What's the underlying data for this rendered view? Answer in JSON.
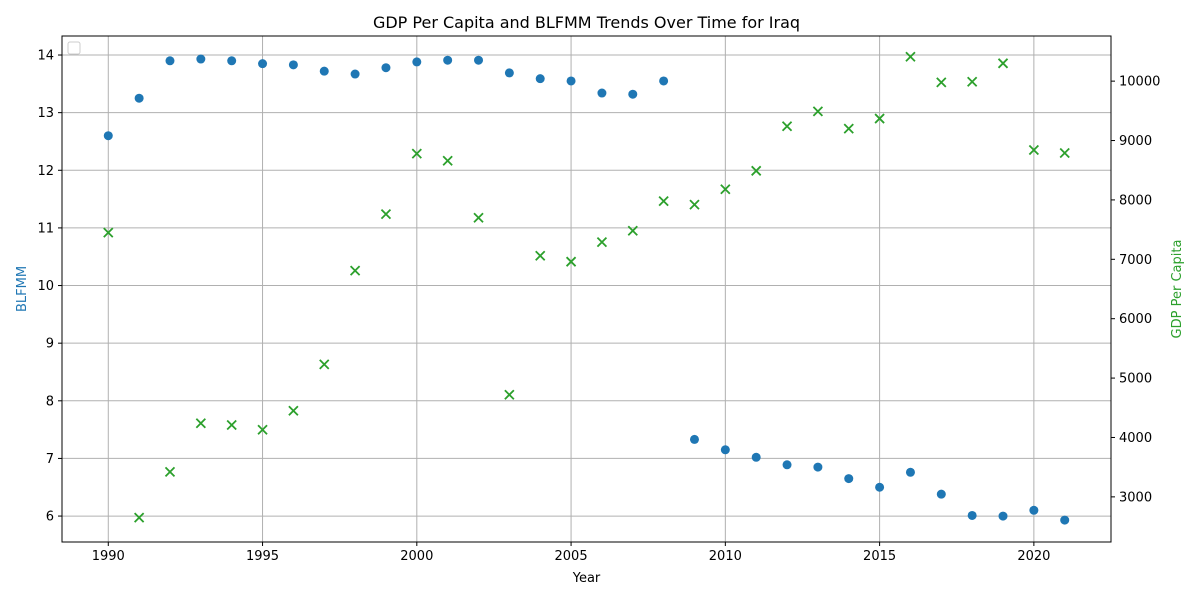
{
  "chart_data": {
    "type": "scatter",
    "title": "GDP Per Capita and BLFMM Trends Over Time for Iraq",
    "xlabel": "Year",
    "ylabel_left": "BLFMM",
    "ylabel_right": "GDP Per Capita",
    "xlim": [
      1988.5,
      2022.5
    ],
    "ylim_left": [
      5.55,
      14.33
    ],
    "ylim_right": [
      2240,
      10760
    ],
    "x_ticks": [
      1990,
      1995,
      2000,
      2005,
      2010,
      2015,
      2020
    ],
    "y_ticks_left": [
      6,
      7,
      8,
      9,
      10,
      11,
      12,
      13,
      14
    ],
    "y_ticks_right": [
      3000,
      4000,
      5000,
      6000,
      7000,
      8000,
      9000,
      10000
    ],
    "grid": true,
    "legend": "top-left (empty)",
    "colors": {
      "blfmm": "#1f77b4",
      "gdp": "#2ca02c",
      "grid": "#b0b0b0"
    },
    "series": [
      {
        "axis": "left",
        "marker": "circle",
        "x": [
          1990,
          1991,
          1992,
          1993,
          1994,
          1995,
          1996,
          1997,
          1998,
          1999,
          2000,
          2001,
          2002,
          2003,
          2004,
          2005,
          2006,
          2007,
          2008,
          2009,
          2010,
          2011,
          2012,
          2013,
          2014,
          2015,
          2016,
          2017,
          2018,
          2019,
          2020,
          2021
        ],
        "values": [
          12.6,
          13.25,
          13.9,
          13.93,
          13.9,
          13.85,
          13.83,
          13.72,
          13.67,
          13.78,
          13.88,
          13.91,
          13.91,
          13.69,
          13.59,
          13.55,
          13.34,
          13.32,
          13.55,
          7.33,
          7.15,
          7.02,
          6.89,
          6.85,
          6.65,
          6.5,
          6.76,
          6.38,
          6.01,
          6.0,
          6.1,
          5.93
        ]
      },
      {
        "axis": "right",
        "marker": "x",
        "x": [
          1990,
          1991,
          1992,
          1993,
          1994,
          1995,
          1996,
          1997,
          1998,
          1999,
          2000,
          2001,
          2002,
          2003,
          2004,
          2005,
          2006,
          2007,
          2008,
          2009,
          2010,
          2011,
          2012,
          2013,
          2014,
          2015,
          2016,
          2017,
          2018,
          2019,
          2020,
          2021
        ],
        "values": [
          7450,
          2650,
          3420,
          4240,
          4210,
          4130,
          4450,
          5230,
          6810,
          7760,
          8780,
          8660,
          7700,
          4720,
          7060,
          6960,
          7290,
          7480,
          7980,
          7920,
          8180,
          8490,
          9240,
          9490,
          9200,
          9370,
          10410,
          9980,
          9990,
          10300,
          8840,
          8790
        ]
      }
    ]
  }
}
